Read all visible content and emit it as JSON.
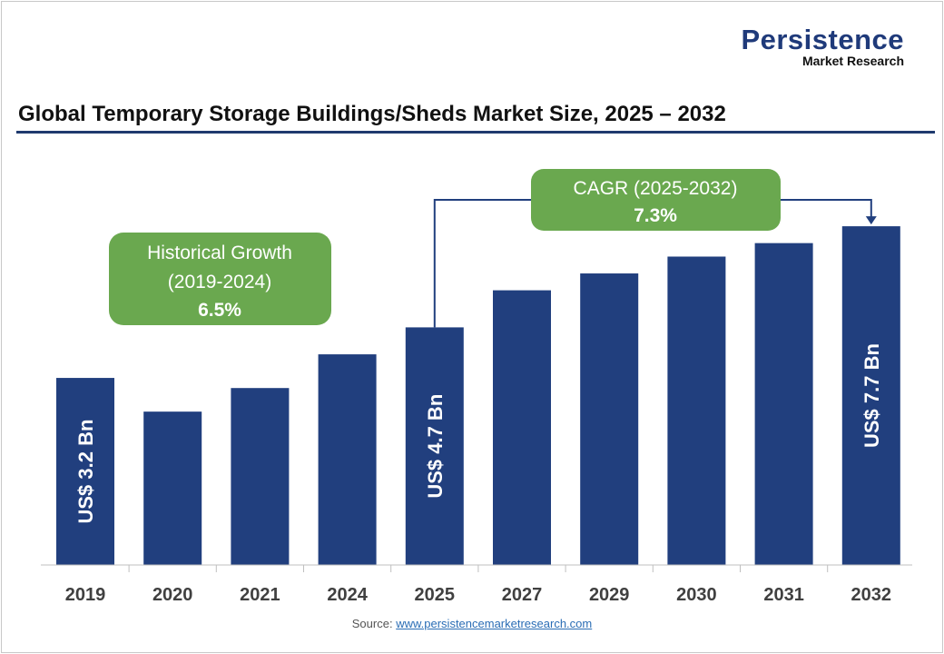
{
  "logo": {
    "line1": "Persistence",
    "line2": "Market Research"
  },
  "title": "Global Temporary Storage Buildings/Sheds Market Size, 2025 – 2032",
  "callouts": {
    "historical": {
      "line1": "Historical Growth",
      "line2": "(2019-2024)",
      "value": "6.5%"
    },
    "cagr": {
      "line1": "CAGR (2025-2032)",
      "value": "7.3%"
    }
  },
  "source": {
    "label": "Source:",
    "link": "www.persistencemarketresearch.com"
  },
  "colors": {
    "bar": "#213f7e",
    "callout": "#6aa84f",
    "rule": "#1f3a6e"
  },
  "chart_data": {
    "type": "bar",
    "categories": [
      "2019",
      "2020",
      "2021",
      "2024",
      "2025",
      "2027",
      "2029",
      "2030",
      "2031",
      "2032"
    ],
    "values": [
      3.2,
      2.2,
      2.9,
      3.9,
      4.7,
      5.8,
      6.3,
      6.8,
      7.2,
      7.7
    ],
    "unit": "US$ Bn",
    "data_labels": {
      "2019": "US$ 3.2 Bn",
      "2025": "US$ 4.7 Bn",
      "2032": "US$ 7.7 Bn"
    },
    "grid": false,
    "legend": "none"
  }
}
